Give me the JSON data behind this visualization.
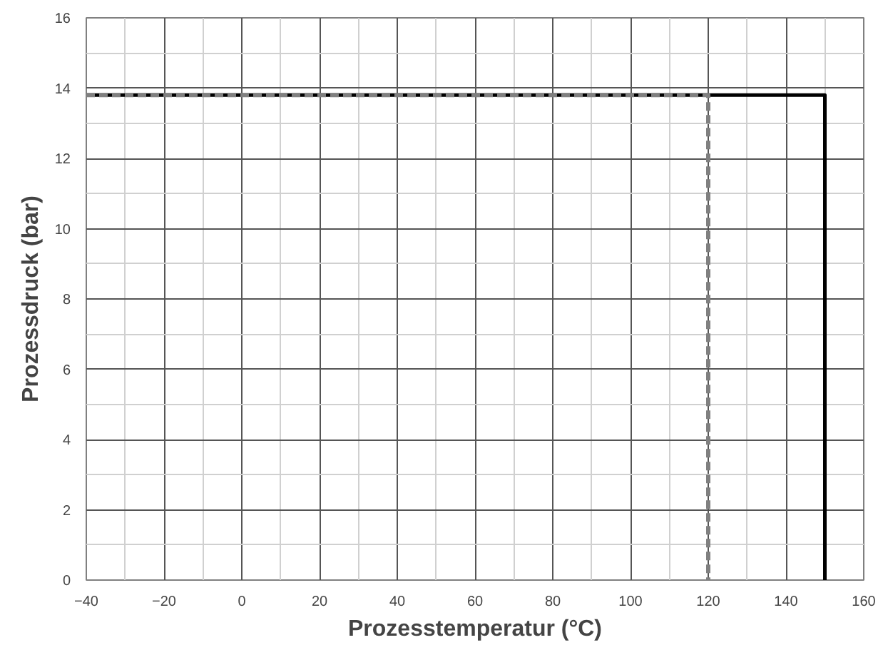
{
  "chart_data": {
    "type": "line",
    "xlabel": "Prozesstemperatur (°C)",
    "ylabel": "Prozessdruck (bar)",
    "xlim": [
      -40,
      160
    ],
    "xticks": [
      -40,
      -20,
      0,
      20,
      40,
      60,
      80,
      100,
      120,
      140,
      160
    ],
    "ylim": [
      0,
      16
    ],
    "yticks": [
      0,
      2,
      4,
      6,
      8,
      10,
      12,
      14,
      16
    ],
    "grid": true,
    "marker": "none",
    "series": [
      {
        "x": [
          -40,
          150,
          150
        ],
        "values": [
          13.8,
          13.8,
          0
        ],
        "color": "#000000",
        "line_style": "solid"
      },
      {
        "x": [
          -40,
          120,
          120
        ],
        "values": [
          13.8,
          13.8,
          0
        ],
        "color": "#808080",
        "line_style": "dashed"
      }
    ]
  }
}
